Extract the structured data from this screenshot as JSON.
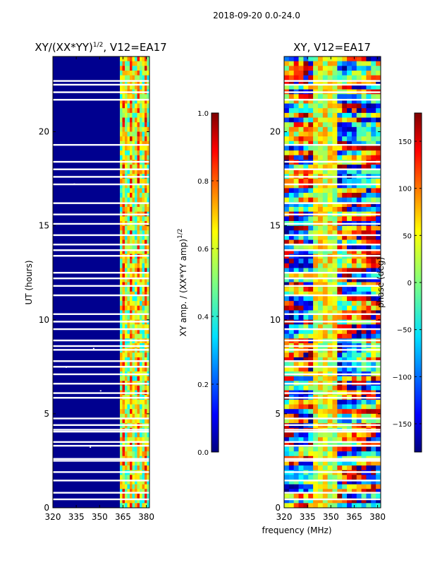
{
  "suptitle": "2018-09-20 0.0-24.0",
  "chart_data": [
    {
      "type": "heatmap",
      "title_base": "XY/(XX*YY)",
      "title_exp": "1/2",
      "title_tail": ", V12=EA17",
      "xlabel": "",
      "ylabel": "UT (hours)",
      "xlim": [
        320,
        382
      ],
      "ylim": [
        0,
        24
      ],
      "xticks": [
        320,
        335,
        350,
        365,
        380
      ],
      "yticks": [
        0,
        5,
        10,
        15,
        20
      ],
      "colorbar": {
        "label_base": "XY amp. / (XX*YY amp)",
        "label_exp": "1/2",
        "range": [
          0.0,
          1.0
        ],
        "ticks": [
          "0.0",
          "0.2",
          "0.4",
          "0.6",
          "0.8",
          "1.0"
        ],
        "colormap": "jet"
      }
    },
    {
      "type": "heatmap",
      "title": "XY, V12=EA17",
      "xlabel": "frequency (MHz)",
      "ylabel": "",
      "xlim": [
        320,
        382
      ],
      "ylim": [
        0,
        24
      ],
      "xticks": [
        320,
        335,
        350,
        365,
        380
      ],
      "yticks": [
        0,
        5,
        10,
        15,
        20
      ],
      "colorbar": {
        "label": "phase (deg)",
        "range": [
          -180,
          180
        ],
        "ticks": [
          "−150",
          "−100",
          "−50",
          "0",
          "50",
          "100",
          "150"
        ],
        "colormap": "jet"
      }
    }
  ],
  "colors": {
    "jet": [
      "#00007f",
      "#0000ff",
      "#007fff",
      "#00ffff",
      "#7fff7f",
      "#ffff00",
      "#ff7f00",
      "#ff0000",
      "#7f0000"
    ],
    "background": "#ffffff",
    "axis": "#000000"
  }
}
